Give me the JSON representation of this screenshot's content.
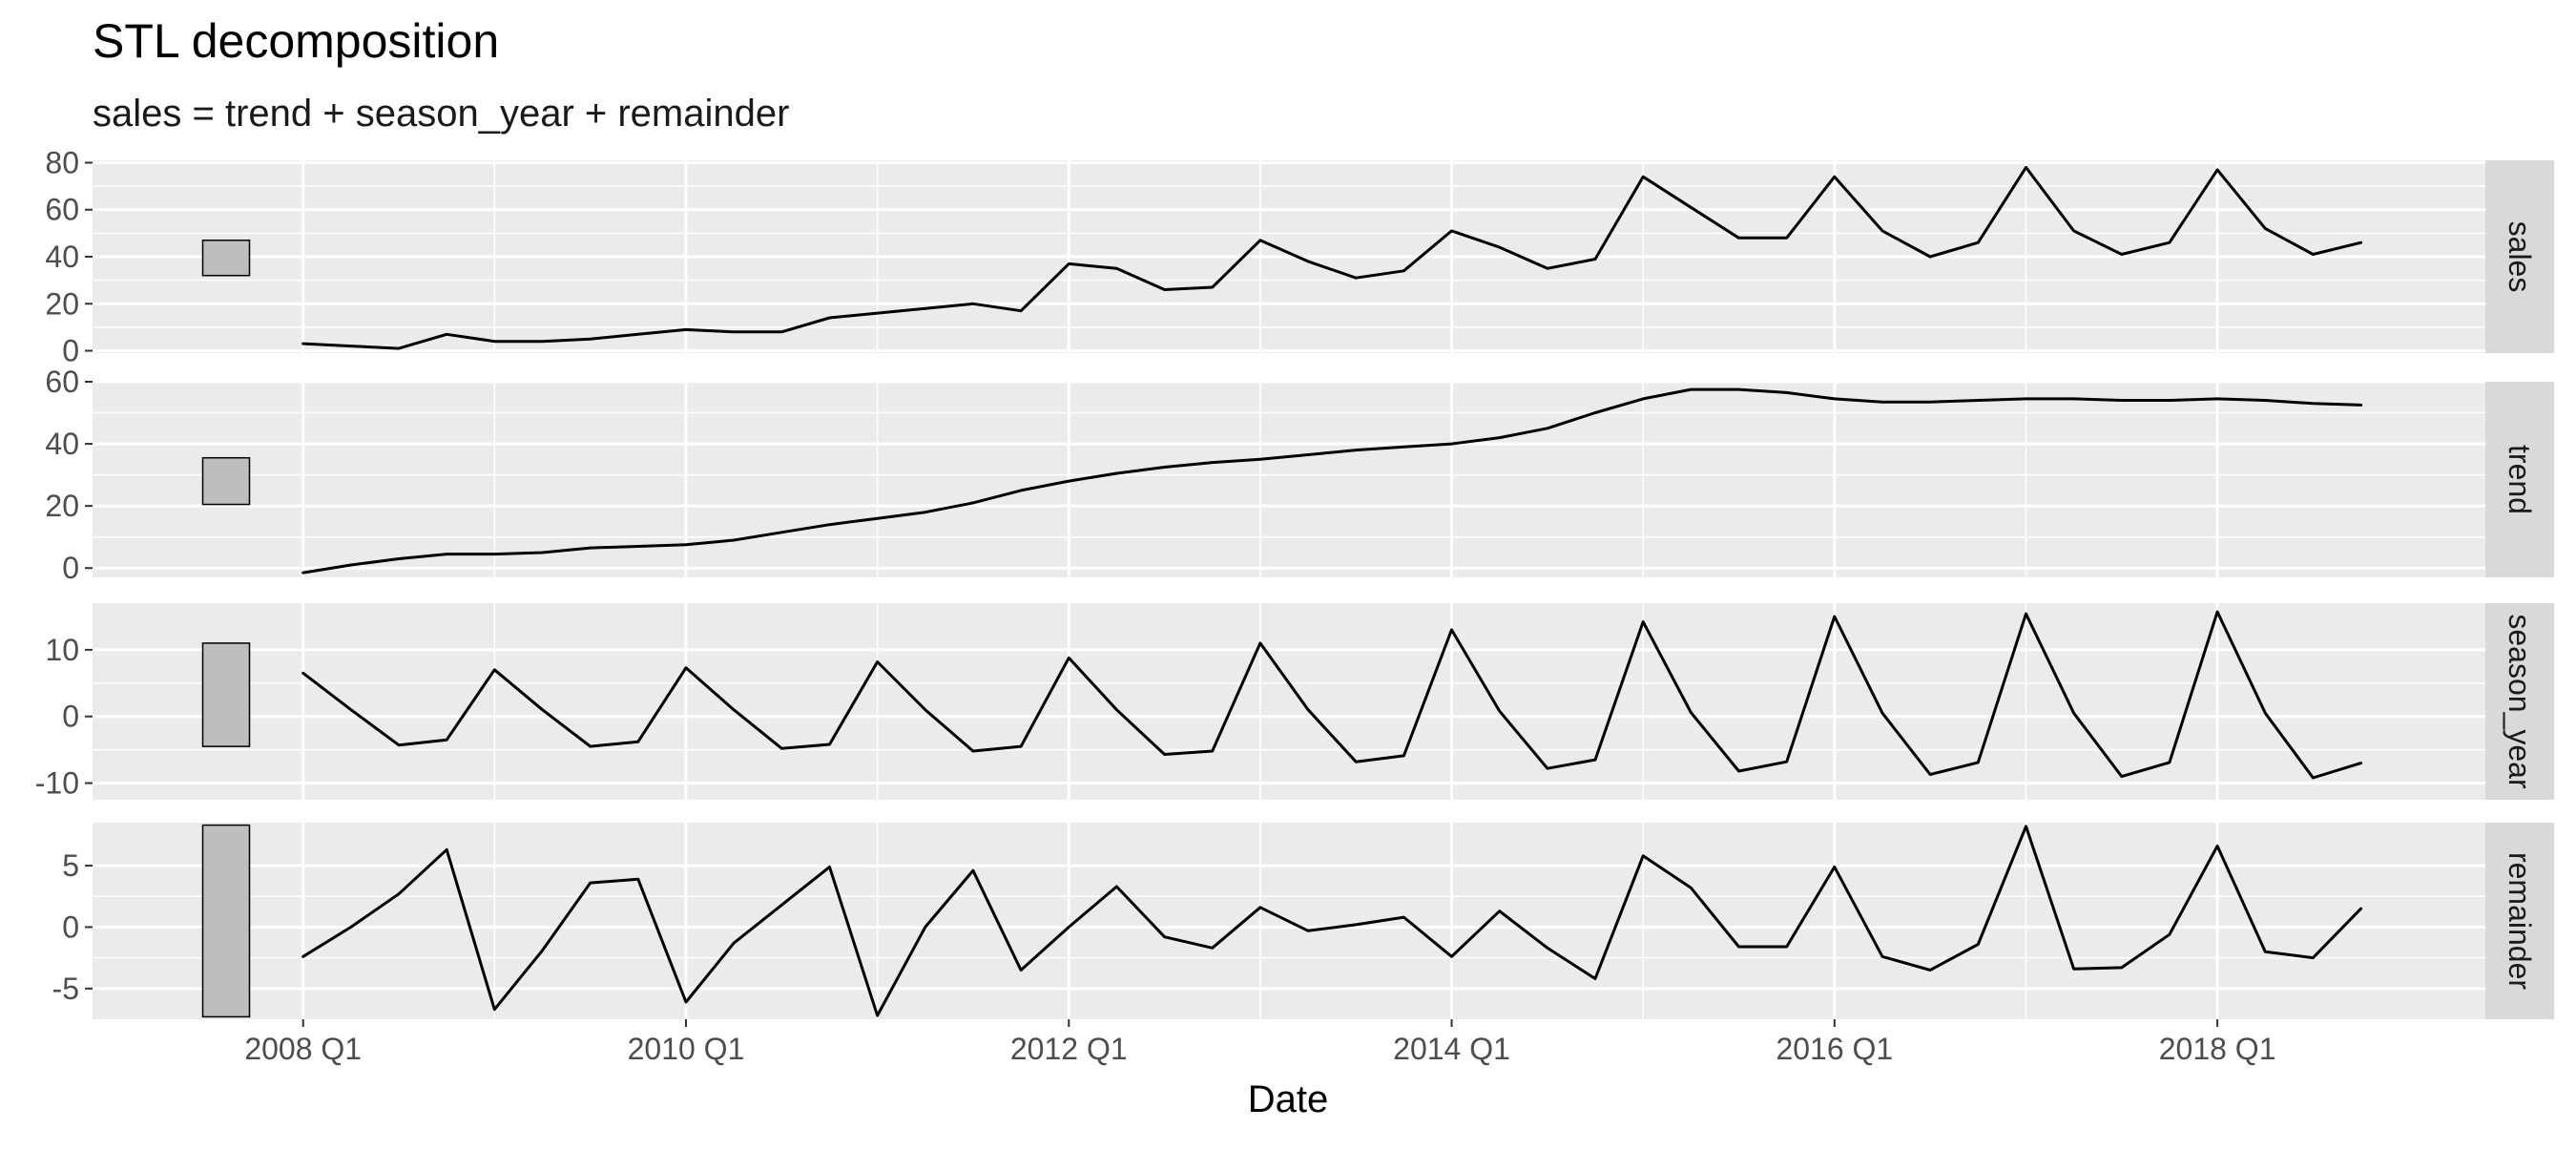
{
  "chart_data": {
    "type": "line",
    "title": "STL decomposition",
    "subtitle": "sales = trend + season_year + remainder",
    "xlabel": "Date",
    "x_tick_labels": [
      "2008 Q1",
      "2010 Q1",
      "2012 Q1",
      "2014 Q1",
      "2016 Q1",
      "2018 Q1"
    ],
    "x_ticks": [
      2008,
      2010,
      2012,
      2014,
      2016,
      2018
    ],
    "xlim": [
      2006.9,
      2019.4
    ],
    "grid": true,
    "x": [
      2008.0,
      2008.25,
      2008.5,
      2008.75,
      2009.0,
      2009.25,
      2009.5,
      2009.75,
      2010.0,
      2010.25,
      2010.5,
      2010.75,
      2011.0,
      2011.25,
      2011.5,
      2011.75,
      2012.0,
      2012.25,
      2012.5,
      2012.75,
      2013.0,
      2013.25,
      2013.5,
      2013.75,
      2014.0,
      2014.25,
      2014.5,
      2014.75,
      2015.0,
      2015.25,
      2015.5,
      2015.75,
      2016.0,
      2016.25,
      2016.5,
      2016.75,
      2017.0,
      2017.25,
      2017.5,
      2017.75,
      2018.0,
      2018.25,
      2018.5,
      2018.75
    ],
    "series": [
      {
        "name": "sales",
        "ylim": [
          -1,
          81
        ],
        "y_ticks": [
          0,
          20,
          40,
          60,
          80
        ],
        "scale_bar": [
          32,
          47
        ],
        "values": [
          3,
          2,
          1,
          7,
          4,
          4,
          5,
          7,
          9,
          8,
          8,
          14,
          16,
          18,
          20,
          17,
          37,
          35,
          26,
          27,
          47,
          38,
          31,
          34,
          51,
          44,
          35,
          39,
          74,
          61,
          48,
          48,
          74,
          51,
          40,
          46,
          78,
          51,
          41,
          46,
          77,
          52,
          41,
          46
        ]
      },
      {
        "name": "trend",
        "ylim": [
          -3,
          60
        ],
        "y_ticks": [
          0,
          20,
          40,
          60
        ],
        "scale_bar": [
          20.5,
          35.5
        ],
        "values": [
          -1.5,
          1,
          3,
          4.5,
          4.5,
          5,
          6.5,
          7,
          7.5,
          9,
          11.5,
          14,
          16,
          18,
          21,
          25,
          28,
          30.5,
          32.5,
          34,
          35,
          36.5,
          38,
          39,
          40,
          42,
          45,
          50,
          54.5,
          57.5,
          57.5,
          56.5,
          54.5,
          53.5,
          53.5,
          54,
          54.5,
          54.5,
          54,
          54,
          54.5,
          54,
          53,
          52.5
        ]
      },
      {
        "name": "season_year",
        "ylim": [
          -12.5,
          17
        ],
        "y_ticks": [
          -10,
          0,
          10
        ],
        "scale_bar": [
          -4.5,
          11
        ],
        "values": [
          6.5,
          1,
          -4.3,
          -3.5,
          7,
          1,
          -4.5,
          -3.8,
          7.3,
          1,
          -4.8,
          -4.2,
          8.2,
          1,
          -5.2,
          -4.5,
          8.8,
          1,
          -5.7,
          -5.2,
          11,
          1,
          -6.8,
          -5.9,
          13,
          0.8,
          -7.8,
          -6.5,
          14.2,
          0.6,
          -8.2,
          -6.8,
          15,
          0.5,
          -8.7,
          -6.9,
          15.4,
          0.5,
          -9,
          -6.9,
          15.7,
          0.5,
          -9.2,
          -7
        ]
      },
      {
        "name": "remainder",
        "ylim": [
          -7.5,
          8.5
        ],
        "y_ticks": [
          -5,
          0,
          5
        ],
        "scale_bar": [
          -7.3,
          8.3
        ],
        "values": [
          -2.4,
          0,
          2.7,
          6.3,
          -6.7,
          -1.9,
          3.6,
          3.9,
          -6.1,
          -1.3,
          1.8,
          4.9,
          -7.2,
          0,
          4.6,
          -3.5,
          0,
          3.3,
          -0.8,
          -1.7,
          1.6,
          -0.3,
          0.2,
          0.8,
          -2.4,
          1.3,
          -1.7,
          -4.2,
          5.8,
          3.2,
          -1.6,
          -1.6,
          4.9,
          -2.4,
          -3.5,
          -1.4,
          8.2,
          -3.4,
          -3.3,
          -0.6,
          6.6,
          -2,
          -2.5,
          1.5
        ]
      }
    ]
  }
}
